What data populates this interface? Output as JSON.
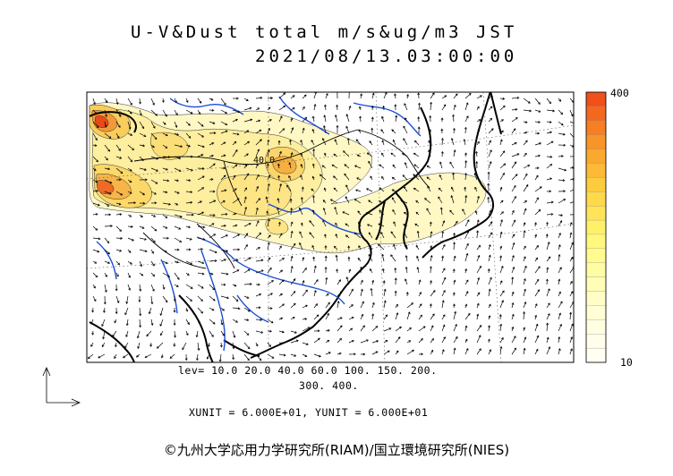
{
  "header": {
    "title_line1": "U-V&Dust total m/s&ug/m3 JST",
    "title_line2": "2021/08/13.03:00:00"
  },
  "contours": {
    "labels": [
      "40.0"
    ],
    "levels_line1": "lev= 10.0 20.0 40.0 60.0 100. 150. 200.",
    "levels_line2": "300. 400."
  },
  "units": {
    "text": "XUNIT = 6.000E+01, YUNIT = 6.000E+01"
  },
  "colorbar": {
    "max_label": "400",
    "min_label": "10",
    "colors": [
      "#f0501a",
      "#f4681e",
      "#f77e22",
      "#f99428",
      "#fba82e",
      "#fcba36",
      "#fdcc3e",
      "#fed94c",
      "#ffe45a",
      "#fff06a",
      "#fff87c",
      "#fffb90",
      "#fffca4",
      "#fffdb6",
      "#fffec6",
      "#fffed4",
      "#fffee0",
      "#fffeea",
      "#fffff2"
    ]
  },
  "copyright": "©九州大学応用力学研究所(RIAM)/国立環境研究所(NIES)",
  "colors": {
    "dust_low": "#fff7b8",
    "dust_mid": "#fde98a",
    "dust_high": "#f5b040",
    "dust_peak": "#e84a18",
    "river": "#1a4fd8",
    "coast": "#000000"
  }
}
